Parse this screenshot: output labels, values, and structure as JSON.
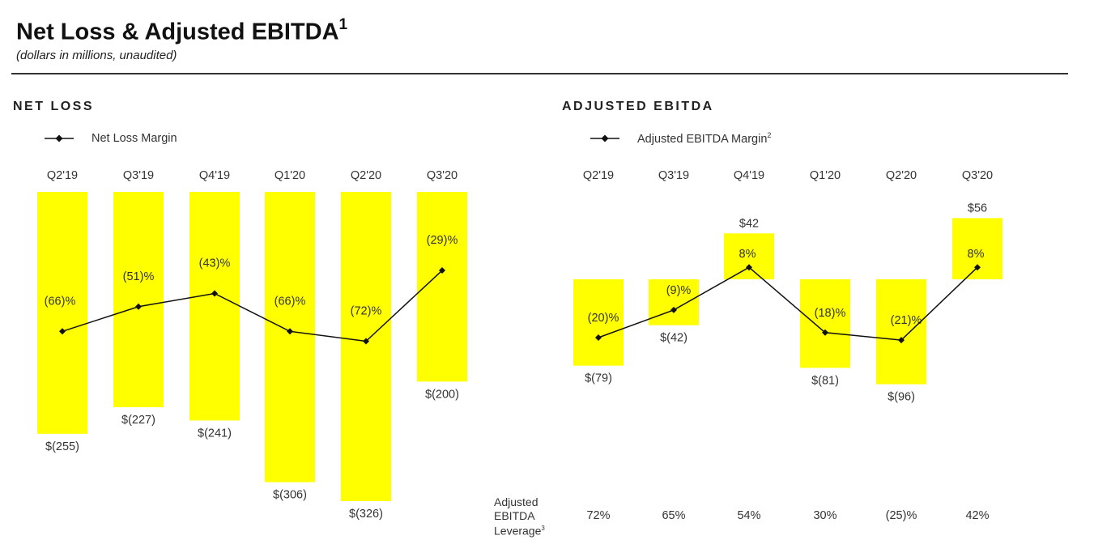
{
  "header": {
    "title": "Net Loss & Adjusted EBITDA",
    "title_footnote": "1",
    "subtitle": "(dollars in millions, unaudited)"
  },
  "colors": {
    "bar": "#ffff00",
    "line": "#111111",
    "text": "#333333"
  },
  "net_loss_section": {
    "title": "NET LOSS",
    "legend_label": "Net Loss Margin",
    "legend_icon": "line-with-diamond-marker"
  },
  "ebitda_section": {
    "title": "ADJUSTED EBITDA",
    "legend_label": "Adjusted EBITDA Margin",
    "legend_footnote": "2",
    "leverage_label_lines": [
      "Adjusted",
      "EBITDA",
      "Leverage"
    ],
    "leverage_footnote": "3"
  },
  "chart_data": [
    {
      "type": "bar",
      "title": "NET LOSS",
      "categories": [
        "Q2'19",
        "Q3'19",
        "Q4'19",
        "Q1'20",
        "Q2'20",
        "Q3'20"
      ],
      "series": [
        {
          "values": [
            -255,
            -227,
            -241,
            -306,
            -326,
            -200
          ],
          "labels": [
            "$(255)",
            "$(227)",
            "$(241)",
            "$(306)",
            "$(326)",
            "$(200)"
          ]
        },
        {
          "name": "Net Loss Margin",
          "type": "line",
          "values": [
            -66,
            -51,
            -43,
            -66,
            -72,
            -29
          ],
          "labels": [
            "(66)%",
            "(51)%",
            "(43)%",
            "(66)%",
            "(72)%",
            "(29)%"
          ]
        }
      ],
      "legend_position": "top-left",
      "grid": false
    },
    {
      "type": "bar",
      "title": "ADJUSTED EBITDA",
      "categories": [
        "Q2'19",
        "Q3'19",
        "Q4'19",
        "Q1'20",
        "Q2'20",
        "Q3'20"
      ],
      "series": [
        {
          "values": [
            -79,
            -42,
            42,
            -81,
            -96,
            56
          ],
          "labels": [
            "$(79)",
            "$(42)",
            "$42",
            "$(81)",
            "$(96)",
            "$56"
          ]
        },
        {
          "name": "Adjusted EBITDA Margin",
          "type": "line",
          "values": [
            -20,
            -9,
            8,
            -18,
            -21,
            8
          ],
          "labels": [
            "(20)%",
            "(9)%",
            "8%",
            "(18)%",
            "(21)%",
            "8%"
          ]
        }
      ],
      "leverage": {
        "values": [
          72,
          65,
          54,
          30,
          -25,
          42
        ],
        "labels": [
          "72%",
          "65%",
          "54%",
          "30%",
          "(25)%",
          "42%"
        ]
      },
      "legend_position": "top-left",
      "grid": false
    }
  ]
}
